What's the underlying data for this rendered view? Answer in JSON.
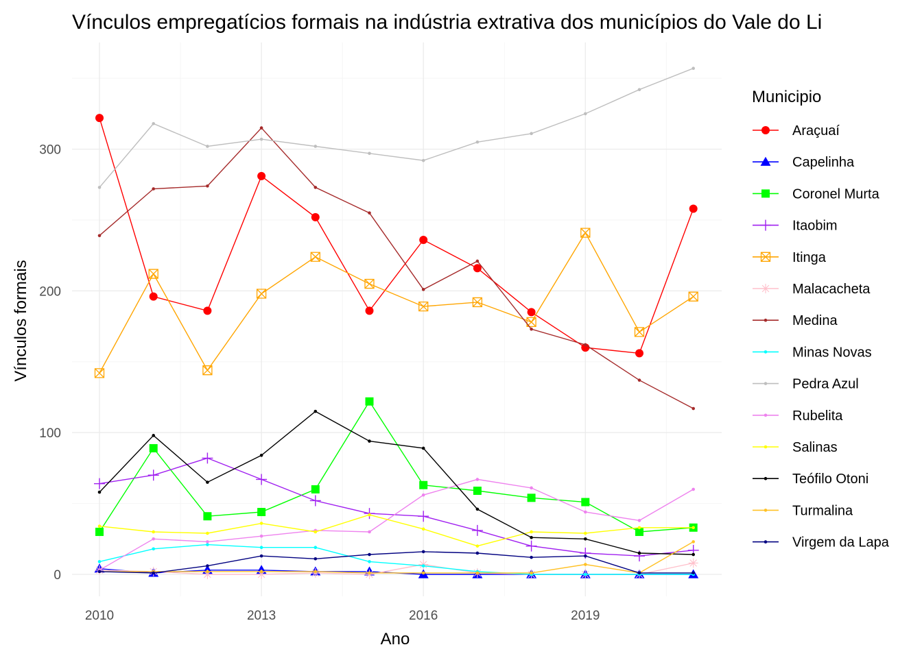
{
  "chart_data": {
    "type": "line",
    "title": "Vínculos empregatícios formais na indústria extrativa dos municípios do Vale do Li",
    "xlabel": "Ano",
    "ylabel": "Vínculos formais",
    "x": [
      2010,
      2011,
      2012,
      2013,
      2014,
      2015,
      2016,
      2017,
      2018,
      2019,
      2020,
      2021
    ],
    "xticks": [
      "2010",
      "2013",
      "2016",
      "2019"
    ],
    "yticks": [
      "0",
      "100",
      "200",
      "300"
    ],
    "xlim": [
      2009.5,
      2021.55
    ],
    "ylim": [
      -15,
      362
    ],
    "grid": true,
    "legend_title": "Municipio",
    "legend_position": "right",
    "series": [
      {
        "name": "Araçuaí",
        "color": "#ff0000",
        "marker": "circle",
        "values": [
          322,
          196,
          186,
          281,
          252,
          186,
          236,
          216,
          185,
          160,
          156,
          258
        ]
      },
      {
        "name": "Capelinha",
        "color": "#0000ff",
        "marker": "triangle",
        "values": [
          4,
          1,
          3,
          3,
          2,
          2,
          0,
          0,
          0,
          0,
          0,
          0
        ]
      },
      {
        "name": "Coronel Murta",
        "color": "#00ff00",
        "marker": "square",
        "values": [
          30,
          89,
          41,
          44,
          60,
          122,
          63,
          59,
          54,
          51,
          30,
          33
        ]
      },
      {
        "name": "Itaobim",
        "color": "#a020f0",
        "marker": "plus",
        "values": [
          64,
          70,
          82,
          67,
          52,
          43,
          41,
          31,
          20,
          15,
          13,
          17
        ]
      },
      {
        "name": "Itinga",
        "color": "#ffa500",
        "marker": "square-x",
        "values": [
          142,
          212,
          144,
          198,
          224,
          205,
          189,
          192,
          178,
          241,
          171,
          196
        ]
      },
      {
        "name": "Malacacheta",
        "color": "#ffc0cb",
        "marker": "asterisk",
        "values": [
          3,
          2,
          0,
          0,
          1,
          0,
          7,
          1,
          0,
          0,
          0,
          8
        ]
      },
      {
        "name": "Medina",
        "color": "#a52a2a",
        "marker": "dot",
        "values": [
          239,
          272,
          274,
          315,
          273,
          255,
          201,
          221,
          173,
          162,
          137,
          117
        ]
      },
      {
        "name": "Minas Novas",
        "color": "#00ffff",
        "marker": "dot",
        "values": [
          9,
          18,
          21,
          19,
          19,
          9,
          6,
          2,
          0,
          0,
          0,
          0
        ]
      },
      {
        "name": "Pedra Azul",
        "color": "#bebebe",
        "marker": "dot",
        "values": [
          273,
          318,
          302,
          307,
          302,
          297,
          292,
          305,
          311,
          325,
          342,
          357
        ]
      },
      {
        "name": "Rubelita",
        "color": "#ee82ee",
        "marker": "dot",
        "values": [
          3,
          25,
          23,
          27,
          31,
          30,
          56,
          67,
          61,
          44,
          38,
          60
        ]
      },
      {
        "name": "Salinas",
        "color": "#ffff00",
        "marker": "dot",
        "values": [
          34,
          30,
          29,
          36,
          30,
          42,
          32,
          20,
          30,
          29,
          33,
          33
        ]
      },
      {
        "name": "Teófilo Otoni",
        "color": "#000000",
        "marker": "dot",
        "values": [
          58,
          98,
          65,
          84,
          115,
          94,
          89,
          46,
          26,
          25,
          15,
          14
        ]
      },
      {
        "name": "Turmalina",
        "color": "#ffc125",
        "marker": "dot",
        "values": [
          2,
          2,
          2,
          2,
          2,
          1,
          1,
          1,
          1,
          7,
          1,
          23
        ]
      },
      {
        "name": "Virgem da Lapa",
        "color": "#000080",
        "marker": "dot",
        "values": [
          2,
          1,
          6,
          13,
          11,
          14,
          16,
          15,
          12,
          13,
          1,
          1
        ]
      }
    ]
  }
}
